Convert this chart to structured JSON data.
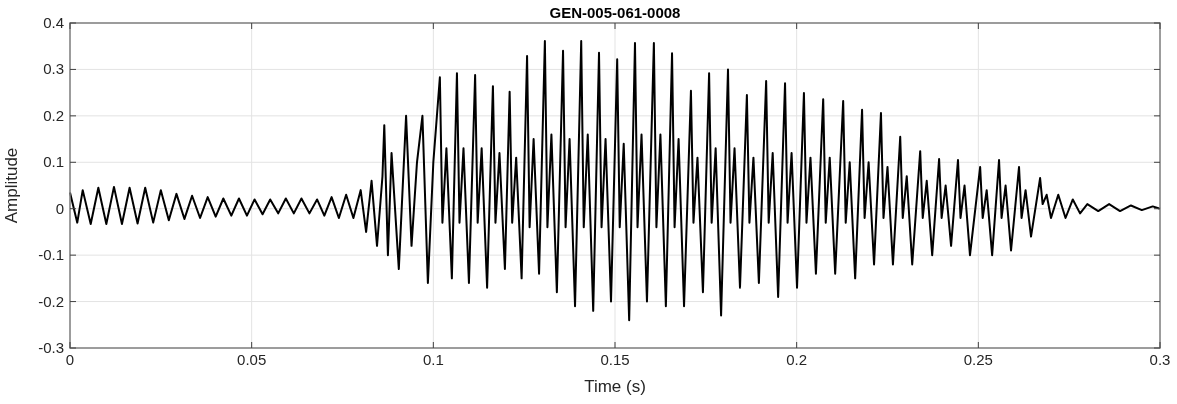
{
  "chart_data": {
    "type": "line",
    "title": "GEN-005-061-0008",
    "xlabel": "Time (s)",
    "ylabel": "Amplitude",
    "xlim": [
      0,
      0.3
    ],
    "ylim": [
      -0.3,
      0.4
    ],
    "xticks": [
      0,
      0.05,
      0.1,
      0.15,
      0.2,
      0.25,
      0.3
    ],
    "yticks": [
      -0.3,
      -0.2,
      -0.1,
      0,
      0.1,
      0.2,
      0.3,
      0.4
    ],
    "grid": true,
    "series": [
      {
        "color": "#000000",
        "x": [
          0,
          0.002,
          0.0035,
          0.0057,
          0.0078,
          0.01,
          0.0121,
          0.0143,
          0.0164,
          0.0186,
          0.0207,
          0.0229,
          0.025,
          0.0272,
          0.0293,
          0.0315,
          0.0336,
          0.0358,
          0.0379,
          0.0401,
          0.0422,
          0.0444,
          0.0465,
          0.0487,
          0.0508,
          0.053,
          0.0551,
          0.0573,
          0.0594,
          0.0616,
          0.0637,
          0.0659,
          0.068,
          0.07,
          0.072,
          0.074,
          0.076,
          0.078,
          0.08,
          0.0815,
          0.083,
          0.0845,
          0.086,
          0.0865,
          0.0875,
          0.0885,
          0.0905,
          0.0925,
          0.094,
          0.0955,
          0.097,
          0.0985,
          0.1,
          0.1018,
          0.1025,
          0.1036,
          0.1051,
          0.1065,
          0.1072,
          0.1083,
          0.1098,
          0.1115,
          0.1122,
          0.1133,
          0.1148,
          0.1164,
          0.1171,
          0.1182,
          0.1197,
          0.121,
          0.1217,
          0.1228,
          0.1243,
          0.1258,
          0.1265,
          0.1276,
          0.1291,
          0.1307,
          0.1314,
          0.1325,
          0.134,
          0.1357,
          0.1364,
          0.1375,
          0.139,
          0.1407,
          0.1414,
          0.1425,
          0.144,
          0.1456,
          0.1463,
          0.1474,
          0.1489,
          0.1506,
          0.1513,
          0.1524,
          0.1539,
          0.1555,
          0.1562,
          0.1573,
          0.1588,
          0.1607,
          0.1614,
          0.1625,
          0.164,
          0.1657,
          0.1664,
          0.1675,
          0.169,
          0.1709,
          0.1716,
          0.1727,
          0.1742,
          0.1759,
          0.1766,
          0.1777,
          0.1792,
          0.1811,
          0.1818,
          0.1829,
          0.1844,
          0.1863,
          0.187,
          0.1881,
          0.1896,
          0.1916,
          0.1923,
          0.1934,
          0.1949,
          0.1968,
          0.1975,
          0.1986,
          0.2001,
          0.202,
          0.2027,
          0.2038,
          0.2053,
          0.2073,
          0.208,
          0.2091,
          0.2106,
          0.2128,
          0.2135,
          0.2146,
          0.2161,
          0.218,
          0.2187,
          0.2198,
          0.2213,
          0.2232,
          0.2239,
          0.225,
          0.2265,
          0.2285,
          0.2292,
          0.2303,
          0.2318,
          0.234,
          0.2347,
          0.2358,
          0.2373,
          0.2392,
          0.2399,
          0.241,
          0.2425,
          0.2444,
          0.2451,
          0.2462,
          0.2477,
          0.2505,
          0.2512,
          0.2523,
          0.2538,
          0.2557,
          0.2564,
          0.2575,
          0.259,
          0.2612,
          0.2619,
          0.263,
          0.2645,
          0.267,
          0.2677,
          0.2688,
          0.27,
          0.272,
          0.274,
          0.276,
          0.278,
          0.28,
          0.283,
          0.286,
          0.289,
          0.292,
          0.295,
          0.298,
          0.3
        ],
        "values": [
          0.035,
          -0.03,
          0.04,
          -0.033,
          0.045,
          -0.033,
          0.047,
          -0.033,
          0.045,
          -0.032,
          0.045,
          -0.03,
          0.04,
          -0.025,
          0.032,
          -0.022,
          0.028,
          -0.02,
          0.025,
          -0.017,
          0.022,
          -0.015,
          0.022,
          -0.015,
          0.02,
          -0.012,
          0.02,
          -0.01,
          0.022,
          -0.01,
          0.022,
          -0.01,
          0.02,
          -0.015,
          0.025,
          -0.02,
          0.03,
          -0.02,
          0.04,
          -0.05,
          0.06,
          -0.08,
          0.07,
          0.18,
          -0.1,
          0.12,
          -0.13,
          0.2,
          -0.08,
          0.1,
          0.2,
          -0.16,
          0.1,
          0.283,
          -0.03,
          0.13,
          -0.15,
          0.292,
          -0.03,
          0.13,
          -0.16,
          0.288,
          -0.03,
          0.13,
          -0.17,
          0.264,
          -0.03,
          0.12,
          -0.13,
          0.252,
          -0.03,
          0.11,
          -0.15,
          0.329,
          -0.04,
          0.15,
          -0.14,
          0.361,
          -0.04,
          0.16,
          -0.18,
          0.34,
          -0.04,
          0.15,
          -0.21,
          0.361,
          -0.04,
          0.16,
          -0.22,
          0.336,
          -0.04,
          0.15,
          -0.2,
          0.322,
          -0.04,
          0.14,
          -0.24,
          0.357,
          -0.04,
          0.16,
          -0.2,
          0.357,
          -0.04,
          0.16,
          -0.21,
          0.335,
          -0.04,
          0.15,
          -0.21,
          0.254,
          -0.03,
          0.11,
          -0.18,
          0.292,
          -0.03,
          0.13,
          -0.23,
          0.3,
          -0.03,
          0.13,
          -0.17,
          0.245,
          -0.03,
          0.11,
          -0.16,
          0.275,
          -0.03,
          0.12,
          -0.19,
          0.27,
          -0.03,
          0.12,
          -0.17,
          0.249,
          -0.03,
          0.11,
          -0.14,
          0.236,
          -0.03,
          0.11,
          -0.14,
          0.232,
          -0.03,
          0.1,
          -0.15,
          0.213,
          -0.02,
          0.1,
          -0.12,
          0.206,
          -0.02,
          0.09,
          -0.12,
          0.155,
          -0.02,
          0.07,
          -0.12,
          0.124,
          -0.02,
          0.06,
          -0.1,
          0.107,
          -0.02,
          0.05,
          -0.08,
          0.105,
          -0.02,
          0.05,
          -0.1,
          0.09,
          -0.02,
          0.04,
          -0.1,
          0.105,
          -0.02,
          0.05,
          -0.09,
          0.09,
          -0.02,
          0.04,
          -0.06,
          0.066,
          0.01,
          0.03,
          -0.02,
          0.03,
          -0.02,
          0.02,
          -0.01,
          0.01,
          -0.005,
          0.01,
          -0.005,
          0.007,
          -0.003,
          0.005,
          0
        ]
      }
    ]
  }
}
